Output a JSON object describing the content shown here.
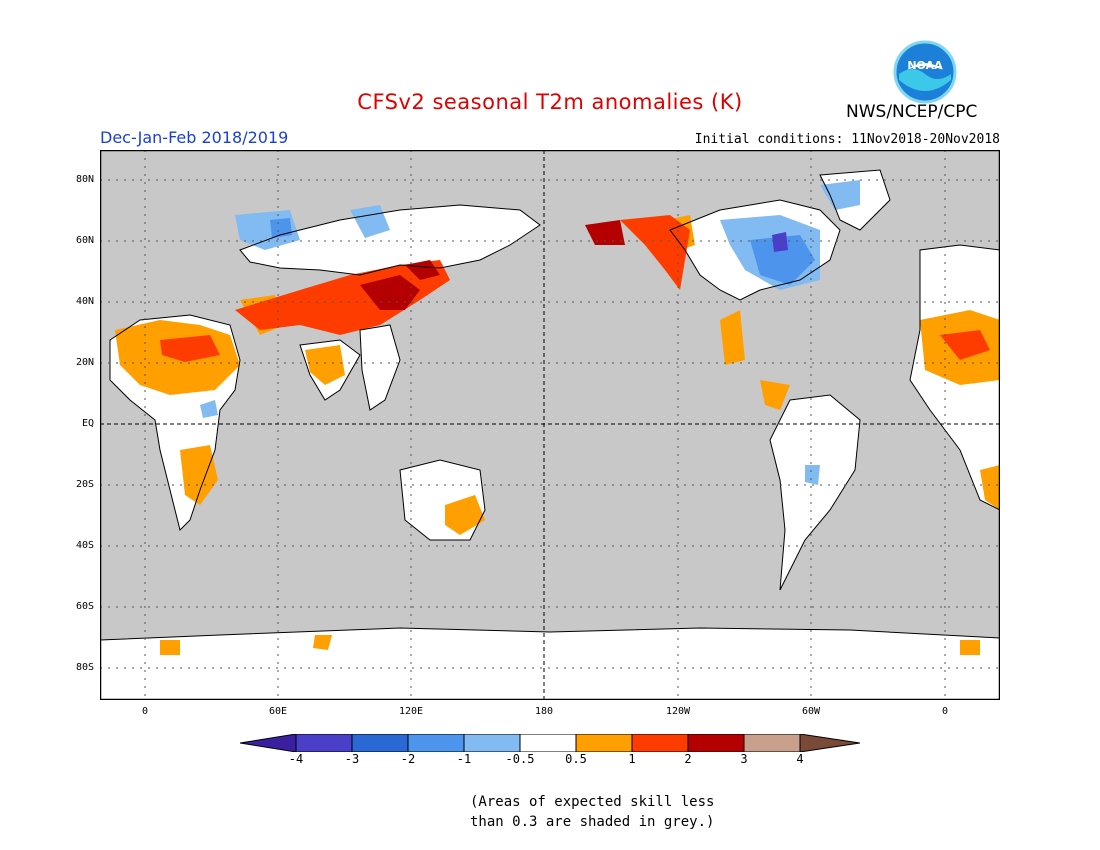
{
  "title": "CFSv2 seasonal T2m anomalies (K)",
  "season": "Dec-Jan-Feb 2018/2019",
  "initial_conditions": "Initial conditions: 11Nov2018-20Nov2018",
  "agency": "NWS/NCEP/CPC",
  "logo_text": "NOAA",
  "latitude_labels": [
    "80N",
    "60N",
    "40N",
    "20N",
    "EQ",
    "20S",
    "40S",
    "60S",
    "80S"
  ],
  "longitude_labels": [
    "0",
    "60E",
    "120E",
    "180",
    "120W",
    "60W",
    "0"
  ],
  "colorbar_labels": [
    "-4",
    "-3",
    "-2",
    "-1",
    "-0.5",
    "0.5",
    "1",
    "2",
    "3",
    "4"
  ],
  "colors": {
    "lt_-4": "#3a1fa0",
    "-4_-3": "#4a3fc8",
    "-3_-2": "#2a68d4",
    "-2_-1": "#4d94ec",
    "-1_-0.5": "#82baf2",
    "-0.5_0.5": "#ffffff",
    "0.5_1": "#ffa000",
    "1_2": "#ff3c00",
    "2_3": "#b40000",
    "3_4": "#c8a08c",
    "gt_4": "#7a4a38",
    "low_skill": "#c8c8c8"
  },
  "note_lines": [
    "(Areas of expected skill less",
    "than 0.3 are shaded in grey.)"
  ]
}
